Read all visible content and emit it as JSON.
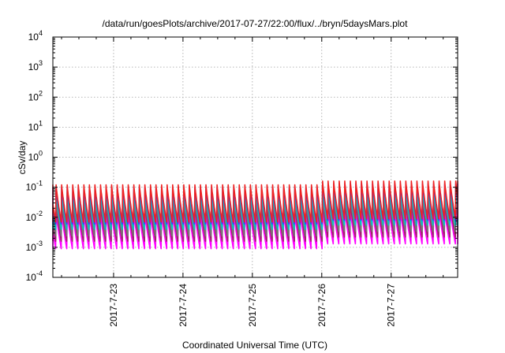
{
  "chart_data": {
    "type": "line",
    "title": "/data/run/goesPlots/archive/2017-07-27/22:00/flux/../bryn/5daysMars.plot",
    "xlabel": "Coordinated Universal Time (UTC)",
    "ylabel": "cSv/day",
    "yscale": "log",
    "ylim": [
      0.0001,
      10000
    ],
    "y_ticks": [
      {
        "base": "10",
        "exp": "-4"
      },
      {
        "base": "10",
        "exp": "-3"
      },
      {
        "base": "10",
        "exp": "-2"
      },
      {
        "base": "10",
        "exp": "-1"
      },
      {
        "base": "10",
        "exp": "0"
      },
      {
        "base": "10",
        "exp": "1"
      },
      {
        "base": "10",
        "exp": "2"
      },
      {
        "base": "10",
        "exp": "3"
      },
      {
        "base": "10",
        "exp": "4"
      }
    ],
    "xlim": [
      "2017-07-22T03:00",
      "2017-07-27T23:00"
    ],
    "x_ticks": [
      "2017-7-23",
      "2017-7-24",
      "2017-7-25",
      "2017-7-26",
      "2017-7-27"
    ],
    "grid": true,
    "legend": "none",
    "sawtooth_period_hours": 1.92,
    "series": [
      {
        "color": "#ff00ff",
        "peak": 0.014,
        "trough": 0.0009,
        "late_peak": 0.017,
        "late_trough": 0.0013
      },
      {
        "color": "#a0206b",
        "peak": 0.025,
        "trough": 0.0016,
        "late_peak": 0.03,
        "late_trough": 0.0022
      },
      {
        "color": "#777777",
        "peak": 0.04,
        "trough": 0.0024,
        "late_peak": 0.048,
        "late_trough": 0.0034
      },
      {
        "color": "#00c6c6",
        "peak": 0.07,
        "trough": 0.004,
        "late_peak": 0.085,
        "late_trough": 0.0055
      },
      {
        "color": "#3a3aff",
        "peak": 0.1,
        "trough": 0.006,
        "late_peak": 0.13,
        "late_trough": 0.008
      },
      {
        "color": "#ee2222",
        "peak": 0.12,
        "trough": 0.007,
        "late_peak": 0.16,
        "late_trough": 0.009
      }
    ]
  }
}
